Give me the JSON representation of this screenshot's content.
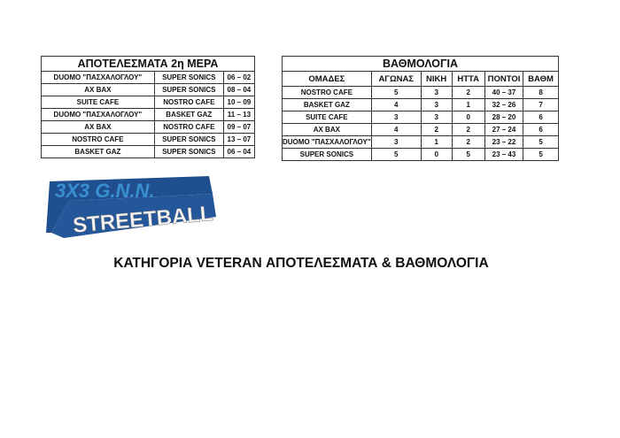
{
  "results": {
    "title": "ΑΠΟΤΕΛΕΣΜΑΤΑ 2η ΜΕΡΑ",
    "rows": [
      [
        "DUOMO \"ΠΑΣΧΑΛΟΓΛΟΥ\"",
        "SUPER SONICS",
        "06 – 02"
      ],
      [
        "AX BAX",
        "SUPER SONICS",
        "08 – 04"
      ],
      [
        "SUITE CAFE",
        "NOSTRO CAFE",
        "10 – 09"
      ],
      [
        "DUOMO \"ΠΑΣΧΑΛΟΓΛΟΥ\"",
        "BASKET GAZ",
        "11 – 13"
      ],
      [
        "AX BAX",
        "NOSTRO CAFE",
        "09 – 07"
      ],
      [
        "NOSTRO CAFE",
        "SUPER SONICS",
        "13 – 07"
      ],
      [
        "BASKET GAZ",
        "SUPER SONICS",
        "06 – 04"
      ]
    ]
  },
  "standings": {
    "title": "ΒΑΘΜΟΛΟΓΙΑ",
    "headers": [
      "ΟΜΑΔΕΣ",
      "ΑΓΩΝΑΣ",
      "ΝΙΚΗ",
      "ΗΤΤΑ",
      "ΠΟΝΤΟΙ",
      "ΒΑΘΜ"
    ],
    "rows": [
      [
        "NOSTRO CAFE",
        "5",
        "3",
        "2",
        "40 – 37",
        "8"
      ],
      [
        "BASKET GAZ",
        "4",
        "3",
        "1",
        "32 – 26",
        "7"
      ],
      [
        "SUITE CAFE",
        "3",
        "3",
        "0",
        "28 – 20",
        "6"
      ],
      [
        "AX BAX",
        "4",
        "2",
        "2",
        "27 – 24",
        "6"
      ],
      [
        "DUOMO \"ΠΑΣΧΑΛΟΓΛΟΥ\"",
        "3",
        "1",
        "2",
        "23 – 22",
        "5"
      ],
      [
        "SUPER SONICS",
        "5",
        "0",
        "5",
        "23 – 43",
        "5"
      ]
    ]
  },
  "logo": {
    "top": "3X3 G.N.N.",
    "bottom": "STREETBALL",
    "colors": {
      "dark": "#1f4f8f",
      "light": "#3a8fd0"
    }
  },
  "caption": "ΚΑΤΗΓΟΡΙΑ VETERAN ΑΠΟΤΕΛΕΣΜΑΤΑ & ΒΑΘΜΟΛΟΓΙΑ"
}
